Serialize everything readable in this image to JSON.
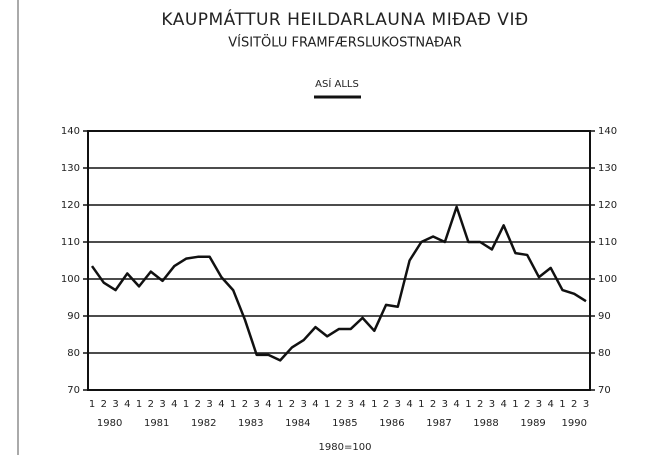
{
  "chart_data": {
    "type": "line",
    "title": "KAUPMÁTTUR HEILDARLAUNA MIÐAÐ VIÐ",
    "subtitle": "VÍSITÖLU FRAMFÆRSLUKOSTNAÐAR",
    "note": "1980=100",
    "categories": [
      "1",
      "2",
      "3",
      "4",
      "1",
      "2",
      "3",
      "4",
      "1",
      "2",
      "3",
      "4",
      "1",
      "2",
      "3",
      "4",
      "1",
      "2",
      "3",
      "4",
      "1",
      "2",
      "3",
      "4",
      "1",
      "2",
      "3",
      "4",
      "1",
      "2",
      "3",
      "4",
      "1",
      "2",
      "3",
      "4",
      "1",
      "2",
      "3",
      "4",
      "1",
      "2",
      "3"
    ],
    "years": [
      "1980",
      "1981",
      "1982",
      "1983",
      "1984",
      "1985",
      "1986",
      "1987",
      "1988",
      "1989",
      "1990"
    ],
    "series": [
      {
        "name": "ASÍ ALLS",
        "color": "#111111",
        "values": [
          103.5,
          99,
          97,
          101.5,
          98,
          102,
          99.5,
          103.5,
          105.5,
          106,
          106,
          100.5,
          97,
          89,
          79.5,
          79.5,
          78,
          81.5,
          83.5,
          87,
          84.5,
          86.5,
          86.5,
          89.5,
          86,
          93,
          92.5,
          105,
          110,
          111.5,
          110,
          119.5,
          110,
          110,
          108,
          114.5,
          107,
          106.5,
          100.5,
          103,
          97,
          96,
          94
        ]
      }
    ],
    "ylim": [
      70,
      140
    ],
    "yticks": [
      70,
      80,
      90,
      100,
      110,
      120,
      130,
      140
    ],
    "y2lim": [
      70,
      140
    ],
    "y2ticks": [
      70,
      80,
      90,
      100,
      110,
      120,
      130,
      140
    ],
    "grid": true
  }
}
